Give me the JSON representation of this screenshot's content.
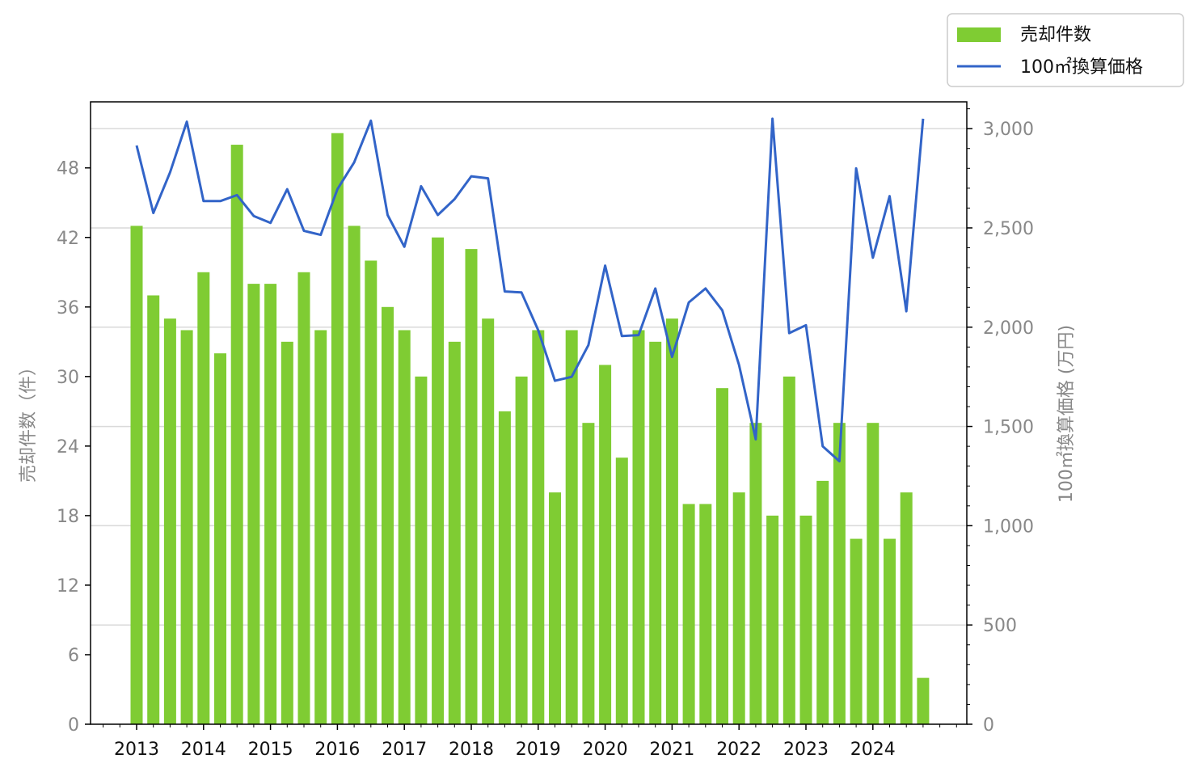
{
  "chart_data": {
    "type": "bar+line",
    "x_tick_labels": [
      "2013",
      "2014",
      "2015",
      "2016",
      "2017",
      "2018",
      "2019",
      "2020",
      "2021",
      "2022",
      "2023",
      "2024"
    ],
    "x_start_year": 2013,
    "periods_per_year": 4,
    "bar_color": "#7fcc33",
    "line_color": "#3264c8",
    "y_left": {
      "label": "売却件数（件）",
      "ticks": [
        0,
        6,
        12,
        18,
        24,
        30,
        36,
        42,
        48
      ],
      "range": [
        0,
        53.7
      ]
    },
    "y_right": {
      "label": "100㎡換算価格 (万円)",
      "ticks": [
        0,
        500,
        1000,
        1500,
        2000,
        2500,
        3000
      ],
      "tick_labels": [
        "0",
        "500",
        "1,000",
        "1,500",
        "2,000",
        "2,500",
        "3,000"
      ],
      "range": [
        0,
        3135
      ]
    },
    "legend": {
      "placement": "top-right",
      "entries": [
        "売却件数",
        "100㎡換算価格"
      ]
    },
    "series": [
      {
        "name": "売却件数",
        "kind": "bar",
        "axis": "left",
        "values": [
          43,
          37,
          35,
          34,
          39,
          32,
          50,
          38,
          38,
          33,
          39,
          34,
          51,
          43,
          40,
          36,
          34,
          30,
          42,
          33,
          41,
          35,
          27,
          30,
          34,
          20,
          34,
          26,
          31,
          23,
          34,
          33,
          35,
          19,
          19,
          29,
          20,
          26,
          18,
          30,
          18,
          21,
          26,
          16,
          26,
          16,
          20,
          4
        ]
      },
      {
        "name": "100㎡換算価格",
        "kind": "line",
        "axis": "right",
        "values": [
          2915,
          2575,
          2780,
          3035,
          2635,
          2635,
          2665,
          2560,
          2525,
          2695,
          2485,
          2465,
          2695,
          2830,
          3040,
          2565,
          2405,
          2710,
          2565,
          2645,
          2760,
          2750,
          2180,
          2175,
          1985,
          1730,
          1750,
          1910,
          2310,
          1955,
          1960,
          2195,
          1850,
          2125,
          2195,
          2085,
          1810,
          1435,
          3050,
          1970,
          2010,
          1400,
          1325,
          2800,
          2350,
          2660,
          2080,
          3050
        ]
      }
    ]
  }
}
